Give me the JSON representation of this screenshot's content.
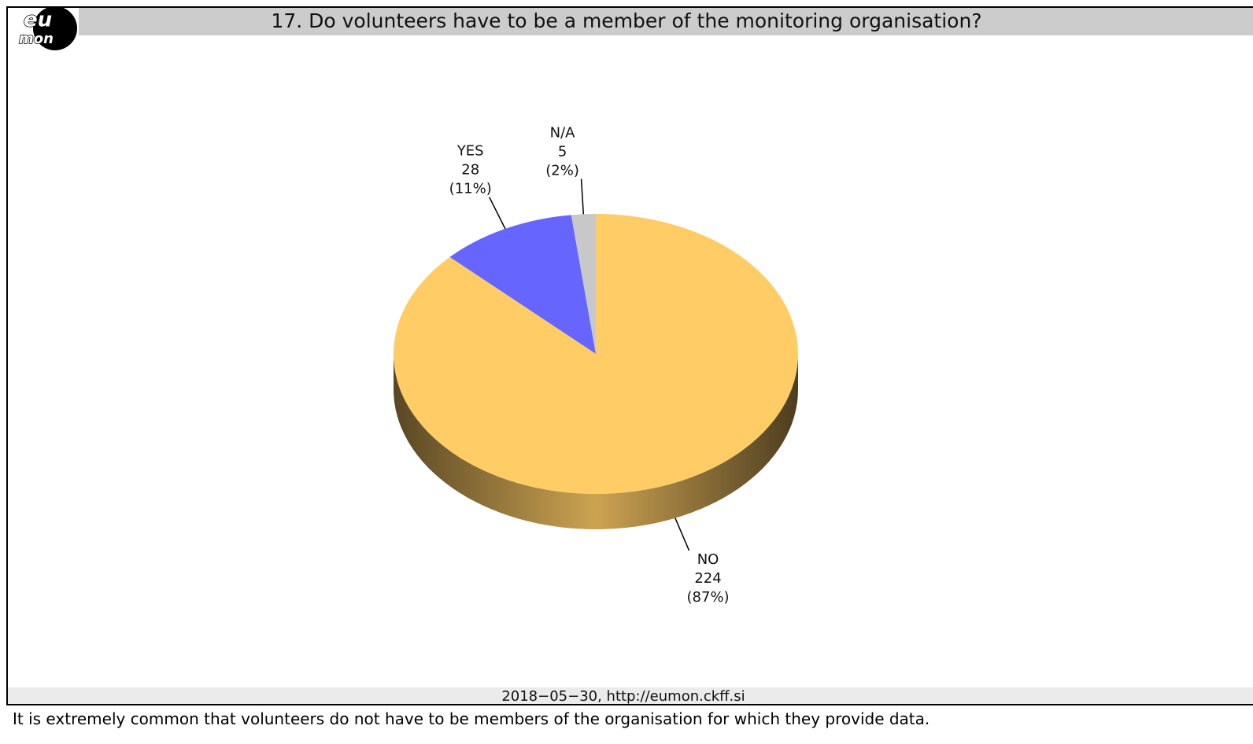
{
  "logo": {
    "top": "eu",
    "bottom": "mon"
  },
  "chart_data": {
    "type": "pie3d",
    "title": "17. Do volunteers have to be a member of the monitoring organisation?",
    "categories": [
      "N/A",
      "YES",
      "NO"
    ],
    "values": [
      5,
      28,
      224
    ],
    "percentages": [
      2,
      11,
      87
    ],
    "percentage_labels": [
      "(2%)",
      "(11%)",
      "(87%)"
    ],
    "colors": [
      "#c8c8c8",
      "#6666ff",
      "#ffcc66"
    ],
    "footer": "2018−05−30,  http://eumon.ckff.si"
  },
  "caption": "It is extremely common that volunteers do not have to be members of the organisation for which they provide data."
}
